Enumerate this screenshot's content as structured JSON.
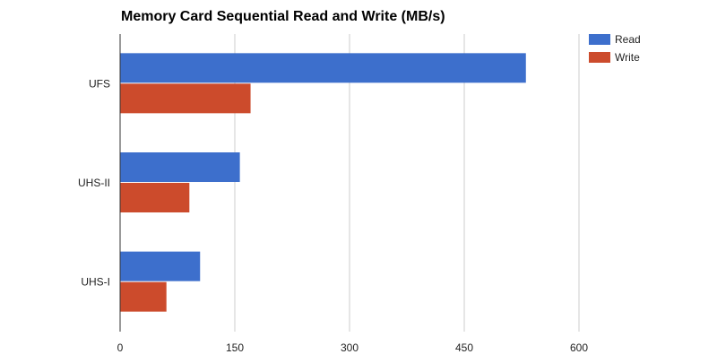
{
  "chart_data": {
    "type": "bar",
    "orientation": "horizontal",
    "title": "Memory Card Sequential Read and Write (MB/s)",
    "xlabel": "",
    "ylabel": "",
    "categories": [
      "UFS",
      "UHS-II",
      "UHS-I"
    ],
    "series": [
      {
        "name": "Read",
        "color": "#3d6fcc",
        "values": [
          530,
          156,
          104
        ]
      },
      {
        "name": "Write",
        "color": "#cc4b2c",
        "values": [
          170,
          90,
          60
        ]
      }
    ],
    "xlim": [
      0,
      600
    ],
    "xticks": [
      0,
      150,
      300,
      450,
      600
    ],
    "grid": true,
    "legend": "top-right"
  }
}
